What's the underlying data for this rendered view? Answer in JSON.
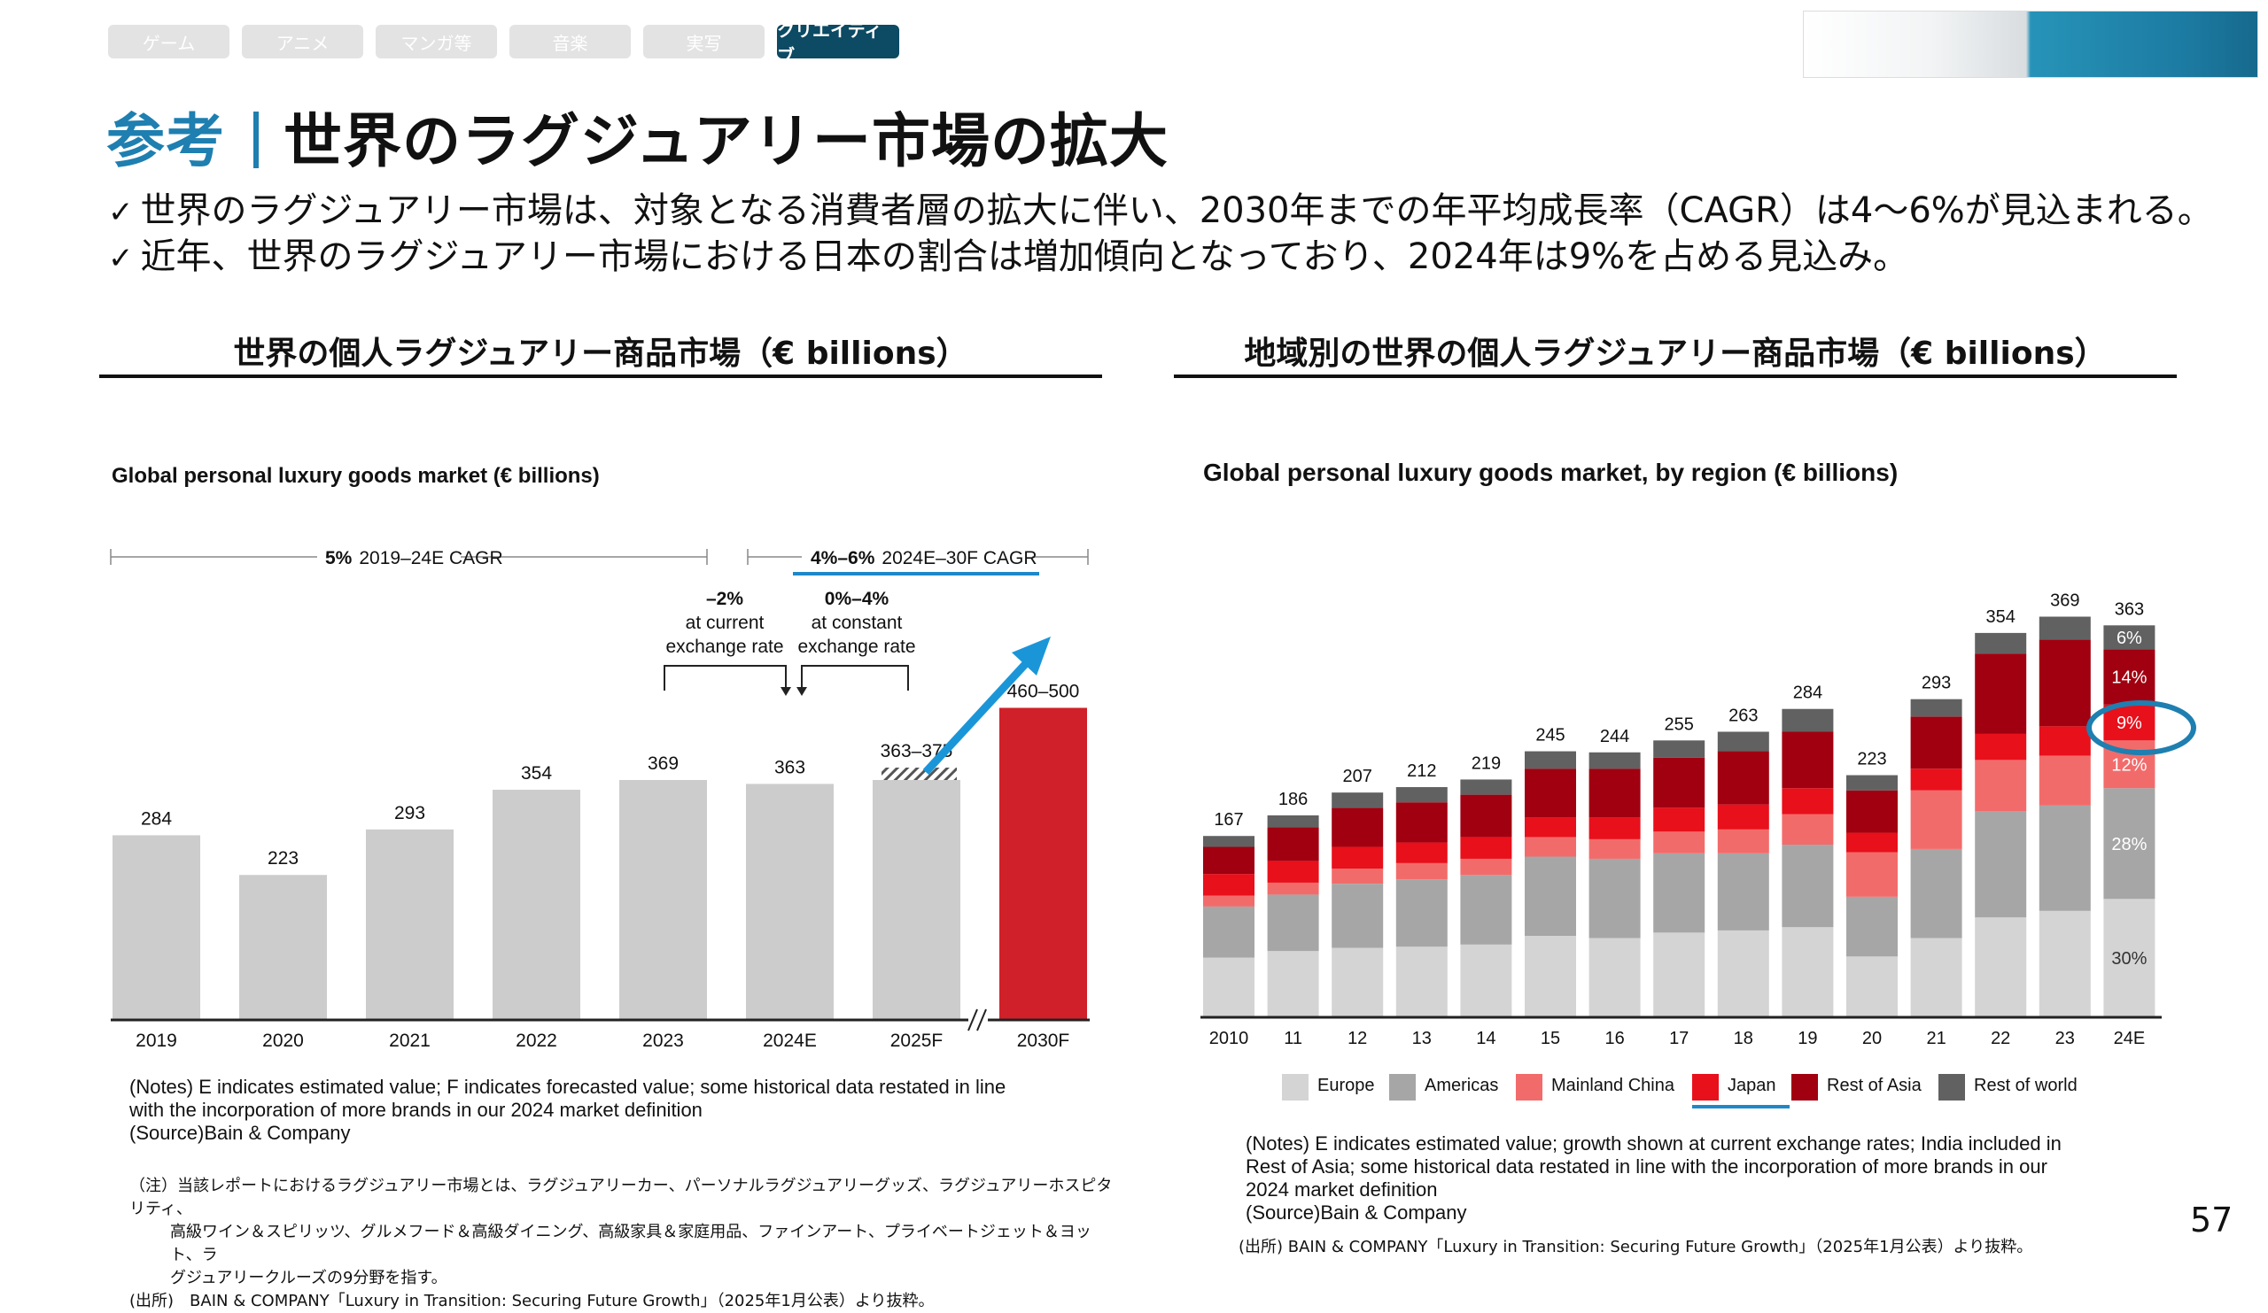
{
  "tabs": [
    {
      "label": "ゲーム",
      "active": false
    },
    {
      "label": "アニメ",
      "active": false
    },
    {
      "label": "マンガ等",
      "active": false
    },
    {
      "label": "音楽",
      "active": false
    },
    {
      "label": "実写",
      "active": false
    },
    {
      "label": "クリエイティブ",
      "active": true
    }
  ],
  "title": {
    "prefix": "参考",
    "main": "世界のラグジュアリー市場の拡大"
  },
  "bullets": [
    {
      "check": "✓",
      "text": "世界のラグジュアリー市場は、対象となる消費者層の拡大に伴い、2030年までの年平均成長率（CAGR）は4～6%が見込まれる。"
    },
    {
      "check": "✓",
      "text": "近年、世界のラグジュアリー市場における日本の割合は増加傾向となっており、2024年は9%を占める見込み。"
    }
  ],
  "left_section_title": "世界の個人ラグジュアリー商品市場（€ billions）",
  "right_section_title": "地域別の世界の個人ラグジュアリー商品市場（€ billions）",
  "chart_data": [
    {
      "type": "bar",
      "title": "Global personal luxury goods market (€ billions)",
      "categories": [
        "2019",
        "2020",
        "2021",
        "2022",
        "2023",
        "2024E",
        "2025F",
        "2030F"
      ],
      "values": [
        284,
        223,
        293,
        354,
        369,
        363,
        369,
        480
      ],
      "value_labels": [
        "284",
        "223",
        "293",
        "354",
        "369",
        "363",
        "363–375",
        "460–500"
      ],
      "highlight_color": "#d0202a",
      "bar_color": "#cccccc",
      "annotations": {
        "cagr_hist_pct": "5%",
        "cagr_hist_label": "2019–24E CAGR",
        "cagr_fore_pct": "4%–6%",
        "cagr_fore_label": "2024E–30F CAGR",
        "current_pct": "–2%",
        "current_l1": "at current",
        "current_l2": "exchange rate",
        "constant_pct": "0%–4%",
        "constant_l1": "at constant",
        "constant_l2": "exchange rate"
      },
      "notes": [
        "(Notes) E indicates estimated value; F indicates forecasted value; some historical data restated in line",
        "with the incorporation of more brands in our 2024 market definition",
        "(Source)Bain & Company"
      ]
    },
    {
      "type": "bar",
      "stacked": true,
      "title": "Global personal luxury goods market, by region (€ billions)",
      "categories": [
        "2010",
        "11",
        "12",
        "13",
        "14",
        "15",
        "16",
        "17",
        "18",
        "19",
        "20",
        "21",
        "22",
        "23",
        "24E"
      ],
      "totals": [
        167,
        186,
        207,
        212,
        219,
        245,
        244,
        255,
        263,
        284,
        223,
        293,
        354,
        369,
        363
      ],
      "series": [
        {
          "name": "Europe",
          "color": "#d4d4d4",
          "values": [
            55,
            61,
            64,
            65,
            67,
            75,
            73,
            78,
            80,
            83,
            56,
            73,
            92,
            98,
            109
          ]
        },
        {
          "name": "Americas",
          "color": "#a6a6a6",
          "values": [
            47,
            52,
            59,
            62,
            64,
            73,
            73,
            73,
            71,
            76,
            55,
            82,
            98,
            97,
            102
          ]
        },
        {
          "name": "Mainland China",
          "color": "#f26b6b",
          "values": [
            10,
            11,
            14,
            15,
            15,
            18,
            18,
            20,
            22,
            28,
            41,
            54,
            47,
            46,
            44
          ]
        },
        {
          "name": "Japan",
          "color": "#e8101b",
          "values": [
            20,
            20,
            20,
            19,
            20,
            18,
            20,
            22,
            23,
            24,
            18,
            20,
            24,
            27,
            33
          ]
        },
        {
          "name": "Rest of Asia",
          "color": "#a00010",
          "values": [
            25,
            31,
            36,
            37,
            39,
            45,
            45,
            46,
            49,
            52,
            39,
            48,
            74,
            80,
            51
          ]
        },
        {
          "name": "Rest of world",
          "color": "#616161",
          "values": [
            10,
            11,
            14,
            14,
            14,
            16,
            15,
            16,
            18,
            21,
            14,
            16,
            19,
            21,
            22
          ]
        }
      ],
      "share_labels_24E": [
        "30%",
        "28%",
        "12%",
        "9%",
        "14%",
        "6%"
      ],
      "notes": [
        "(Notes) E indicates estimated value; growth shown at current exchange rates; India included in",
        "Rest of Asia; some historical data restated in line with the incorporation of more brands in our",
        "2024 market definition",
        "(Source)Bain & Company"
      ]
    }
  ],
  "left_japanese_notes": [
    "（注）当該レポートにおけるラグジュアリー市場とは、ラグジュアリーカー、パーソナルラグジュアリーグッズ、ラグジュアリーホスピタリティ、",
    "高級ワイン＆スピリッツ、グルメフード＆高級ダイニング、高級家具＆家庭用品、ファインアート、プライベートジェット＆ヨット、ラ",
    "グジュアリークルーズの9分野を指す。",
    "(出所)　BAIN & COMPANY「Luxury in Transition: Securing Future Growth」（2025年1月公表）より抜粋。"
  ],
  "right_source": "(出所) BAIN & COMPANY「Luxury in Transition: Securing Future Growth」（2025年1月公表）より抜粋。",
  "page_number": "57",
  "colors": {
    "accent": "#1e7fb0",
    "circle": "#1e7fb0",
    "arrow": "#1a96d8",
    "underline": "#1e88c8"
  }
}
